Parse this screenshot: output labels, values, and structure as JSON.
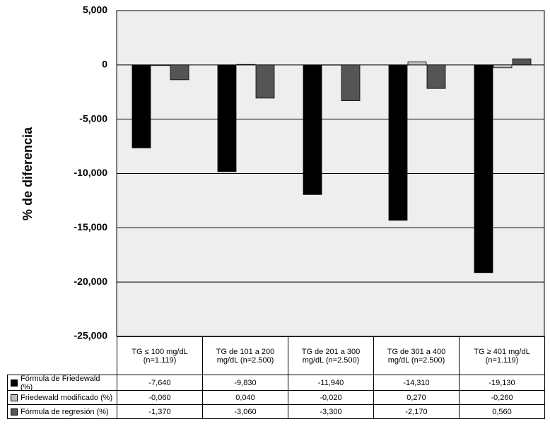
{
  "chart_data": {
    "type": "bar",
    "ylabel": "% de diferencia",
    "categories": [
      "TG ≤ 100 mg/dL (n=1.119)",
      "TG de 101 a 200 mg/dL (n=2.500)",
      "TG de 201 a 300 mg/dL (n=2.500)",
      "TG de 301 a 400 mg/dL (n=2.500)",
      "TG ≥ 401 mg/dL (n=1.119)"
    ],
    "series": [
      {
        "name": "Fórmula de Friedewald (%)",
        "color": "#000000",
        "values": [
          -7.64,
          -9.83,
          -11.94,
          -14.31,
          -19.13
        ],
        "value_labels": [
          "-7,640",
          "-9,830",
          "-11,940",
          "-14,310",
          "-19,130"
        ]
      },
      {
        "name": "Friedewald modificado (%)",
        "color": "#bdbdbd",
        "values": [
          -0.06,
          0.04,
          -0.02,
          0.27,
          -0.26
        ],
        "value_labels": [
          "-0,060",
          "0,040",
          "-0,020",
          "0,270",
          "-0,260"
        ]
      },
      {
        "name": "Fórmula de regresión (%)",
        "color": "#555555",
        "values": [
          -1.37,
          -3.06,
          -3.3,
          -2.17,
          0.56
        ],
        "value_labels": [
          "-1,370",
          "-3,060",
          "-3,300",
          "-2,170",
          "0,560"
        ]
      }
    ],
    "ylim": [
      -25,
      5
    ],
    "yticks": [
      {
        "value": -25,
        "label": "-25,000"
      },
      {
        "value": -20,
        "label": "-20,000"
      },
      {
        "value": -15,
        "label": "-15,000"
      },
      {
        "value": -10,
        "label": "-10,000"
      },
      {
        "value": -5,
        "label": "-5,000"
      },
      0,
      {
        "value": 5,
        "label": "5,000"
      }
    ],
    "grid": true
  }
}
